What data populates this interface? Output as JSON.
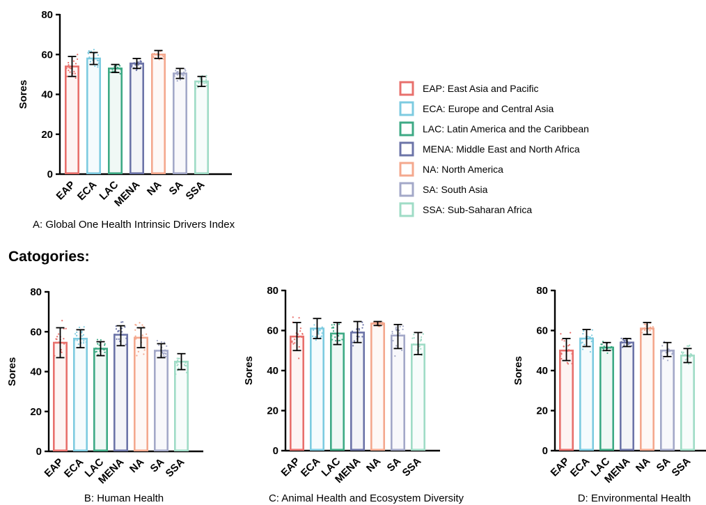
{
  "heading": "Catogories:",
  "colors": {
    "EAP": "#e8706c",
    "ECA": "#7dcbe0",
    "LAC": "#3eaa85",
    "MENA": "#6c74a8",
    "NA": "#f4a88e",
    "SA": "#a3a8c8",
    "SSA": "#9fdcc6"
  },
  "legend": [
    {
      "key": "EAP",
      "label": "EAP: East Asia and Pacific"
    },
    {
      "key": "ECA",
      "label": "ECA: Europe and Central Asia"
    },
    {
      "key": "LAC",
      "label": "LAC: Latin America and the Caribbean"
    },
    {
      "key": "MENA",
      "label": "MENA: Middle East and North Africa"
    },
    {
      "key": "NA",
      "label": "NA: North America"
    },
    {
      "key": "SA",
      "label": "SA: South Asia"
    },
    {
      "key": "SSA",
      "label": "SSA: Sub-Saharan Africa"
    }
  ],
  "chart_data": [
    {
      "type": "bar",
      "caption": "A: Global One Health Intrinsic Drivers Index",
      "ylabel": "Sores",
      "ylim": [
        0,
        80
      ],
      "yticks": [
        0,
        20,
        40,
        60,
        80
      ],
      "categories": [
        "EAP",
        "ECA",
        "LAC",
        "MENA",
        "NA",
        "SA",
        "SSA"
      ],
      "values": [
        54,
        58,
        53,
        55.5,
        60,
        50.5,
        46.5
      ],
      "error": [
        [
          49,
          59
        ],
        [
          55,
          61
        ],
        [
          51,
          55
        ],
        [
          53,
          58
        ],
        [
          58,
          62
        ],
        [
          48,
          53
        ],
        [
          44,
          49
        ]
      ]
    },
    {
      "type": "bar",
      "caption": "B: Human Health",
      "ylabel": "Sores",
      "ylim": [
        0,
        80
      ],
      "yticks": [
        0,
        20,
        40,
        60,
        80
      ],
      "categories": [
        "EAP",
        "ECA",
        "LAC",
        "MENA",
        "NA",
        "SA",
        "SSA"
      ],
      "values": [
        54.5,
        56.5,
        51.5,
        58.5,
        57,
        50.5,
        45
      ],
      "error": [
        [
          47,
          62
        ],
        [
          52,
          61
        ],
        [
          48,
          55
        ],
        [
          53,
          63
        ],
        [
          52,
          62
        ],
        [
          47,
          54
        ],
        [
          41,
          49
        ]
      ]
    },
    {
      "type": "bar",
      "caption": "C: Animal Health and Ecosystem Diversity",
      "ylabel": "Sores",
      "ylim": [
        0,
        80
      ],
      "yticks": [
        0,
        20,
        40,
        60,
        80
      ],
      "categories": [
        "EAP",
        "ECA",
        "LAC",
        "MENA",
        "NA",
        "SA",
        "SSA"
      ],
      "values": [
        57,
        61,
        58.5,
        59,
        63.5,
        57.5,
        53
      ],
      "error": [
        [
          50,
          64
        ],
        [
          56,
          66
        ],
        [
          53,
          64
        ],
        [
          54,
          64.5
        ],
        [
          62.5,
          64.5
        ],
        [
          51,
          63
        ],
        [
          48,
          59
        ]
      ]
    },
    {
      "type": "bar",
      "caption": "D: Environmental Health",
      "ylabel": "Sores",
      "ylim": [
        0,
        80
      ],
      "yticks": [
        0,
        20,
        40,
        60,
        80
      ],
      "categories": [
        "EAP",
        "ECA",
        "LAC",
        "MENA",
        "NA",
        "SA",
        "SSA"
      ],
      "values": [
        50,
        56,
        51.5,
        54,
        61,
        50,
        47.5
      ],
      "error": [
        [
          45,
          56
        ],
        [
          52,
          60.5
        ],
        [
          50,
          54
        ],
        [
          52,
          56
        ],
        [
          58,
          64
        ],
        [
          47,
          54
        ],
        [
          44,
          51
        ]
      ]
    }
  ]
}
